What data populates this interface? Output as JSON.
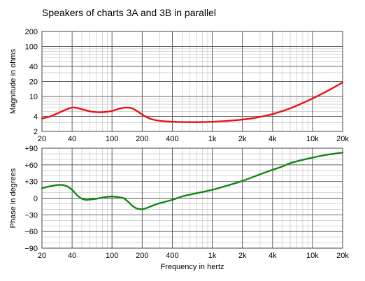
{
  "chart_data": [
    {
      "type": "line",
      "title": "Speakers of charts 3A and 3B in parallel",
      "xlabel": "",
      "ylabel": "Magnitude in ohms",
      "x_scale": "log",
      "y_scale": "log",
      "xlim": [
        20,
        20000
      ],
      "ylim": [
        2,
        200
      ],
      "x_ticks": [
        {
          "value": 20,
          "label": "20"
        },
        {
          "value": 40,
          "label": "40"
        },
        {
          "value": 100,
          "label": "100"
        },
        {
          "value": 200,
          "label": "200"
        },
        {
          "value": 400,
          "label": "400"
        },
        {
          "value": 1000,
          "label": "1k"
        },
        {
          "value": 2000,
          "label": "2k"
        },
        {
          "value": 4000,
          "label": "4k"
        },
        {
          "value": 10000,
          "label": "10k"
        },
        {
          "value": 20000,
          "label": "20k"
        }
      ],
      "y_ticks": [
        {
          "value": 200,
          "label": "200"
        },
        {
          "value": 100,
          "label": "100"
        },
        {
          "value": 40,
          "label": "40"
        },
        {
          "value": 20,
          "label": "20"
        },
        {
          "value": 10,
          "label": "10"
        },
        {
          "value": 4,
          "label": "4"
        },
        {
          "value": 2,
          "label": "2"
        }
      ],
      "grid": true,
      "series": [
        {
          "color": "#ee1111",
          "x": [
            20,
            25,
            30,
            35,
            40,
            45,
            50,
            60,
            70,
            80,
            90,
            100,
            110,
            120,
            130,
            140,
            150,
            160,
            170,
            185,
            200,
            225,
            250,
            300,
            400,
            500,
            600,
            700,
            800,
            1000,
            1200,
            1500,
            2000,
            2500,
            3000,
            4000,
            5000,
            6000,
            8000,
            10000,
            12000,
            15000,
            20000
          ],
          "y": [
            3.6,
            4.1,
            4.8,
            5.5,
            6.0,
            5.9,
            5.55,
            5.05,
            4.85,
            4.85,
            4.95,
            5.15,
            5.45,
            5.75,
            5.95,
            6.0,
            5.95,
            5.75,
            5.4,
            4.85,
            4.35,
            3.8,
            3.5,
            3.25,
            3.12,
            3.08,
            3.07,
            3.07,
            3.08,
            3.12,
            3.18,
            3.28,
            3.45,
            3.65,
            3.9,
            4.45,
            5.1,
            5.8,
            7.4,
            9.1,
            10.9,
            13.8,
            19.0
          ]
        }
      ]
    },
    {
      "type": "line",
      "title": "",
      "xlabel": "Frequency in hertz",
      "ylabel": "Phase in degrees",
      "x_scale": "log",
      "y_scale": "linear",
      "xlim": [
        20,
        20000
      ],
      "ylim": [
        -90,
        90
      ],
      "x_ticks": [
        {
          "value": 20,
          "label": "20"
        },
        {
          "value": 40,
          "label": "40"
        },
        {
          "value": 100,
          "label": "100"
        },
        {
          "value": 200,
          "label": "200"
        },
        {
          "value": 400,
          "label": "400"
        },
        {
          "value": 1000,
          "label": "1k"
        },
        {
          "value": 2000,
          "label": "2k"
        },
        {
          "value": 4000,
          "label": "4k"
        },
        {
          "value": 10000,
          "label": "10k"
        },
        {
          "value": 20000,
          "label": "20k"
        }
      ],
      "y_ticks": [
        {
          "value": 90,
          "label": "+90"
        },
        {
          "value": 60,
          "label": "+60"
        },
        {
          "value": 30,
          "label": "+30"
        },
        {
          "value": 0,
          "label": "0"
        },
        {
          "value": -30,
          "label": "−30"
        },
        {
          "value": -60,
          "label": "−60"
        },
        {
          "value": -90,
          "label": "−90"
        }
      ],
      "grid": true,
      "series": [
        {
          "color": "#118811",
          "x": [
            20,
            25,
            30,
            35,
            40,
            45,
            50,
            55,
            60,
            70,
            80,
            90,
            100,
            110,
            120,
            130,
            140,
            150,
            160,
            170,
            180,
            200,
            220,
            250,
            300,
            400,
            500,
            700,
            1000,
            1500,
            2000,
            3000,
            4000,
            5000,
            6000,
            8000,
            10000,
            12000,
            15000,
            20000
          ],
          "y": [
            18,
            22,
            24,
            22,
            15,
            5,
            -1,
            -3,
            -2.5,
            -1,
            1,
            2.5,
            3,
            2.5,
            1.5,
            0,
            -4,
            -9,
            -14,
            -17,
            -19,
            -20,
            -18,
            -14,
            -9,
            -3,
            3,
            9,
            15,
            24,
            31,
            43,
            51,
            57,
            63,
            69,
            73,
            76,
            79,
            82
          ]
        }
      ]
    }
  ]
}
